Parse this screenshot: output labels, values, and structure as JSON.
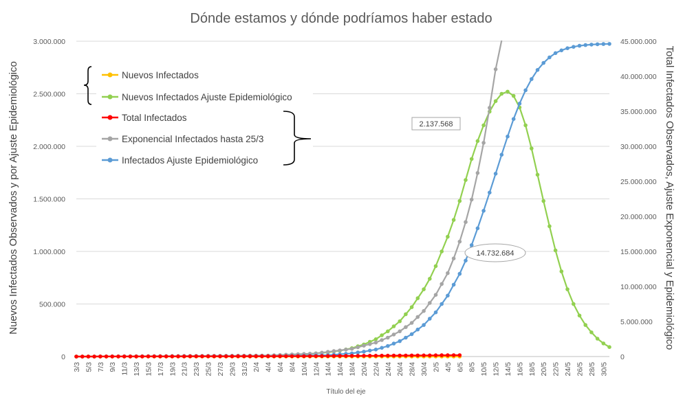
{
  "chart_data": {
    "type": "line",
    "title": "Dónde estamos y dónde podríamos haber estado",
    "xlabel": "Título del eje",
    "ylabel": "Nuevos Infectados Observados y por Ajuste Epidemiológico",
    "y2label": "Total Infectados Observados, Ajuste Exponencial y Epidemiológico",
    "ylim": [
      0,
      3000000
    ],
    "y2lim": [
      0,
      45000000
    ],
    "yticks": [
      "0",
      "500.000",
      "1.000.000",
      "1.500.000",
      "2.000.000",
      "2.500.000",
      "3.000.000"
    ],
    "y2ticks": [
      "0",
      "5.000.000",
      "10.000.000",
      "15.000.000",
      "20.000.000",
      "25.000.000",
      "30.000.000",
      "35.000.000",
      "40.000.000",
      "45.000.000"
    ],
    "grid": true,
    "legend_placement": "top-left",
    "x_start": "2020-03-03",
    "x_end": "2020-05-31",
    "x_tick_labels": [
      "3/3",
      "5/3",
      "7/3",
      "9/3",
      "11/3",
      "13/3",
      "15/3",
      "17/3",
      "19/3",
      "21/3",
      "23/3",
      "25/3",
      "27/3",
      "29/3",
      "31/3",
      "2/4",
      "4/4",
      "6/4",
      "8/4",
      "10/4",
      "12/4",
      "14/4",
      "16/4",
      "18/4",
      "20/4",
      "22/4",
      "24/4",
      "26/4",
      "28/4",
      "30/4",
      "2/5",
      "4/5",
      "6/5",
      "8/5",
      "10/5",
      "12/5",
      "14/5",
      "16/5",
      "18/5",
      "20/5",
      "22/5",
      "24/5",
      "26/5",
      "28/5",
      "30/5"
    ],
    "series": [
      {
        "name": "Nuevos Infectados",
        "color": "#FFC000",
        "axis": "left",
        "points": [
          [
            "2020-03-03",
            0
          ],
          [
            "2020-05-06",
            0
          ]
        ]
      },
      {
        "name": "Nuevos Infectados Ajuste Epidemiológico",
        "color": "#92D050",
        "axis": "left",
        "points": [
          [
            "2020-03-03",
            0
          ],
          [
            "2020-03-25",
            2000
          ],
          [
            "2020-04-04",
            8000
          ],
          [
            "2020-04-10",
            20000
          ],
          [
            "2020-04-14",
            40000
          ],
          [
            "2020-04-16",
            55000
          ],
          [
            "2020-04-18",
            80000
          ],
          [
            "2020-04-20",
            115000
          ],
          [
            "2020-04-22",
            165000
          ],
          [
            "2020-04-24",
            240000
          ],
          [
            "2020-04-26",
            335000
          ],
          [
            "2020-04-28",
            470000
          ],
          [
            "2020-04-30",
            640000
          ],
          [
            "2020-05-01",
            740000
          ],
          [
            "2020-05-02",
            860000
          ],
          [
            "2020-05-03",
            1000000
          ],
          [
            "2020-05-04",
            1140000
          ],
          [
            "2020-05-05",
            1300000
          ],
          [
            "2020-05-06",
            1480000
          ],
          [
            "2020-05-07",
            1680000
          ],
          [
            "2020-05-08",
            1880000
          ],
          [
            "2020-05-09",
            2050000
          ],
          [
            "2020-05-10",
            2200000
          ],
          [
            "2020-05-11",
            2330000
          ],
          [
            "2020-05-12",
            2430000
          ],
          [
            "2020-05-13",
            2500000
          ],
          [
            "2020-05-14",
            2520000
          ],
          [
            "2020-05-15",
            2480000
          ],
          [
            "2020-05-16",
            2370000
          ],
          [
            "2020-05-17",
            2200000
          ],
          [
            "2020-05-18",
            1980000
          ],
          [
            "2020-05-19",
            1730000
          ],
          [
            "2020-05-20",
            1480000
          ],
          [
            "2020-05-21",
            1240000
          ],
          [
            "2020-05-22",
            1010000
          ],
          [
            "2020-05-23",
            810000
          ],
          [
            "2020-05-24",
            640000
          ],
          [
            "2020-05-25",
            500000
          ],
          [
            "2020-05-26",
            390000
          ],
          [
            "2020-05-27",
            300000
          ],
          [
            "2020-05-28",
            230000
          ],
          [
            "2020-05-29",
            170000
          ],
          [
            "2020-05-30",
            125000
          ],
          [
            "2020-05-31",
            90000
          ]
        ]
      },
      {
        "name": "Total Infectados",
        "color": "#FF0000",
        "axis": "right",
        "points": [
          [
            "2020-03-03",
            0
          ],
          [
            "2020-04-10",
            50000
          ],
          [
            "2020-05-06",
            200000
          ]
        ]
      },
      {
        "name": "Exponencial Infectados hasta 25/3",
        "color": "#A5A5A5",
        "axis": "right",
        "points": [
          [
            "2020-03-03",
            0
          ],
          [
            "2020-04-04",
            150000
          ],
          [
            "2020-04-12",
            450000
          ],
          [
            "2020-04-18",
            1100000
          ],
          [
            "2020-04-22",
            2000000
          ],
          [
            "2020-04-24",
            2700000
          ],
          [
            "2020-04-26",
            3600000
          ],
          [
            "2020-04-28",
            4800000
          ],
          [
            "2020-04-30",
            6500000
          ],
          [
            "2020-05-02",
            8800000
          ],
          [
            "2020-05-04",
            11900000
          ],
          [
            "2020-05-05",
            14000000
          ],
          [
            "2020-05-06",
            16400000
          ],
          [
            "2020-05-07",
            19200000
          ],
          [
            "2020-05-08",
            22400000
          ],
          [
            "2020-05-09",
            26200000
          ],
          [
            "2020-05-10",
            30500000
          ],
          [
            "2020-05-11",
            35500000
          ],
          [
            "2020-05-12",
            41000000
          ],
          [
            "2020-05-13",
            46000000
          ]
        ]
      },
      {
        "name": "Infectados Ajuste Epidemiológico",
        "color": "#5B9BD5",
        "axis": "right",
        "points": [
          [
            "2020-03-03",
            0
          ],
          [
            "2020-04-06",
            50000
          ],
          [
            "2020-04-14",
            200000
          ],
          [
            "2020-04-18",
            450000
          ],
          [
            "2020-04-20",
            700000
          ],
          [
            "2020-04-22",
            1000000
          ],
          [
            "2020-04-24",
            1500000
          ],
          [
            "2020-04-26",
            2200000
          ],
          [
            "2020-04-28",
            3200000
          ],
          [
            "2020-04-30",
            4500000
          ],
          [
            "2020-05-02",
            6300000
          ],
          [
            "2020-05-04",
            8700000
          ],
          [
            "2020-05-06",
            11800000
          ],
          [
            "2020-05-07",
            13700000
          ],
          [
            "2020-05-08",
            15900000
          ],
          [
            "2020-05-09",
            18300000
          ],
          [
            "2020-05-10",
            20800000
          ],
          [
            "2020-05-11",
            23400000
          ],
          [
            "2020-05-12",
            26100000
          ],
          [
            "2020-05-13",
            28800000
          ],
          [
            "2020-05-14",
            31400000
          ],
          [
            "2020-05-15",
            33900000
          ],
          [
            "2020-05-16",
            36100000
          ],
          [
            "2020-05-17",
            38000000
          ],
          [
            "2020-05-18",
            39600000
          ],
          [
            "2020-05-19",
            40900000
          ],
          [
            "2020-05-20",
            41900000
          ],
          [
            "2020-05-21",
            42700000
          ],
          [
            "2020-05-22",
            43300000
          ],
          [
            "2020-05-23",
            43700000
          ],
          [
            "2020-05-24",
            44000000
          ],
          [
            "2020-05-25",
            44200000
          ],
          [
            "2020-05-26",
            44350000
          ],
          [
            "2020-05-27",
            44450000
          ],
          [
            "2020-05-28",
            44520000
          ],
          [
            "2020-05-29",
            44570000
          ],
          [
            "2020-05-30",
            44600000
          ],
          [
            "2020-05-31",
            44620000
          ]
        ]
      }
    ],
    "annotations": [
      {
        "text": "2.137.568",
        "shape": "rectangle"
      },
      {
        "text": "14.732.684",
        "shape": "ellipse"
      }
    ]
  }
}
